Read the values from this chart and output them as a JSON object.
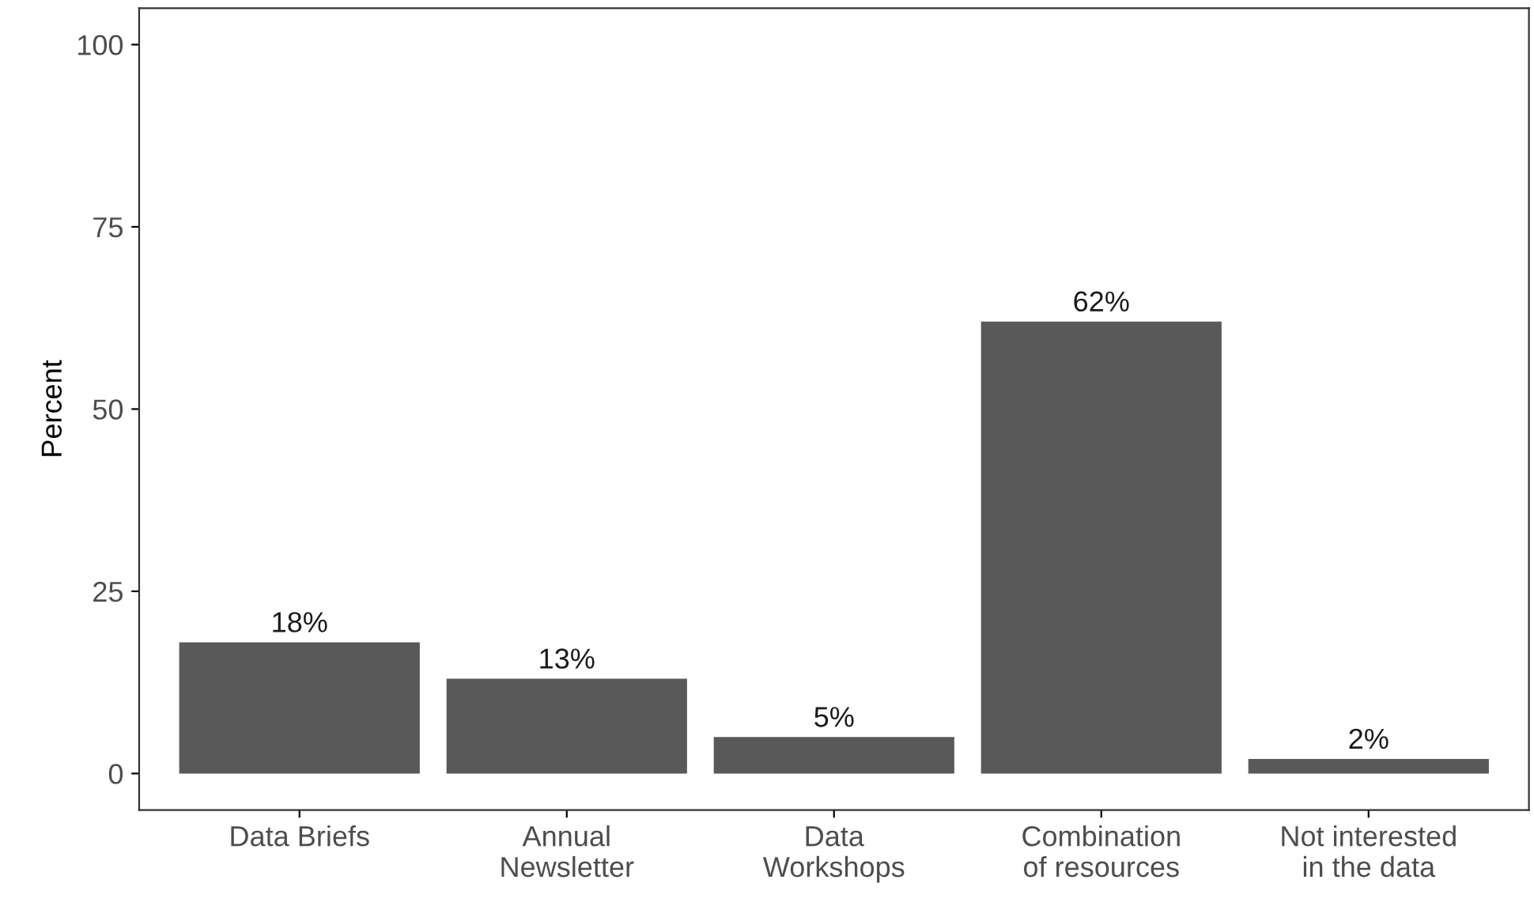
{
  "chart_data": {
    "type": "bar",
    "ylabel": "Percent",
    "categories": [
      "Data Briefs",
      "Annual\nNewsletter",
      "Data\nWorkshops",
      "Combination\nof resources",
      "Not interested\nin the data"
    ],
    "values": [
      18,
      13,
      5,
      62,
      2
    ],
    "color": "#595959",
    "value_labels": [
      "18%",
      "13%",
      "5%",
      "62%",
      "2%"
    ],
    "ylim": [
      -5,
      105
    ],
    "yticks": [
      0,
      25,
      50,
      75,
      100
    ],
    "grid": false,
    "legend": false
  }
}
